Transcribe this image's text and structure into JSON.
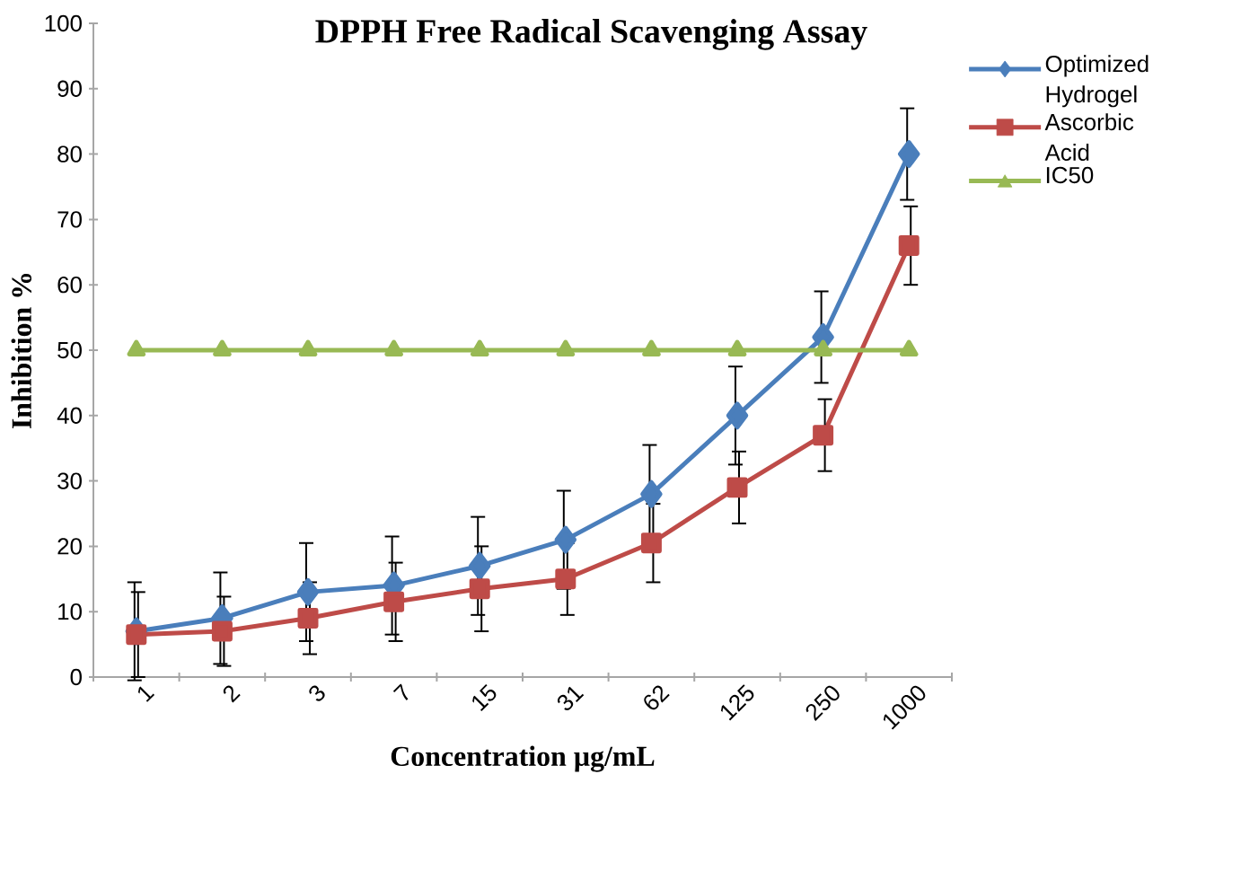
{
  "chart_data": {
    "type": "line",
    "title": "DPPH Free Radical Scavenging Assay",
    "xlabel": "Concentration  µg/mL",
    "ylabel": "Inhibition  %",
    "categories": [
      "1",
      "2",
      "3",
      "7",
      "15",
      "31",
      "62",
      "125",
      "250",
      "1000"
    ],
    "series": [
      {
        "name": "Optimized Hydrogel",
        "color": "#4a7ebb",
        "marker": "diamond",
        "values": [
          7,
          9,
          13,
          14,
          17,
          21,
          28,
          40,
          52,
          80
        ],
        "errors": [
          7.5,
          7,
          7.5,
          7.5,
          7.5,
          7.5,
          7.5,
          7.5,
          7,
          7
        ]
      },
      {
        "name": "Ascorbic Acid",
        "color": "#be4b48",
        "marker": "square",
        "values": [
          6.5,
          7,
          9,
          11.5,
          13.5,
          15,
          20.5,
          29,
          37,
          66
        ],
        "errors": [
          6.5,
          5.3,
          5.5,
          6,
          6.5,
          5.5,
          6,
          5.5,
          5.5,
          6
        ]
      },
      {
        "name": "IC50",
        "color": "#98b954",
        "marker": "triangle",
        "values": [
          50,
          50,
          50,
          50,
          50,
          50,
          50,
          50,
          50,
          50
        ]
      }
    ],
    "ylim": [
      0,
      100
    ],
    "yticks": [
      0,
      10,
      20,
      30,
      40,
      50,
      60,
      70,
      80,
      90,
      100
    ],
    "grid": false,
    "legend": "right",
    "line_style": "solid"
  }
}
